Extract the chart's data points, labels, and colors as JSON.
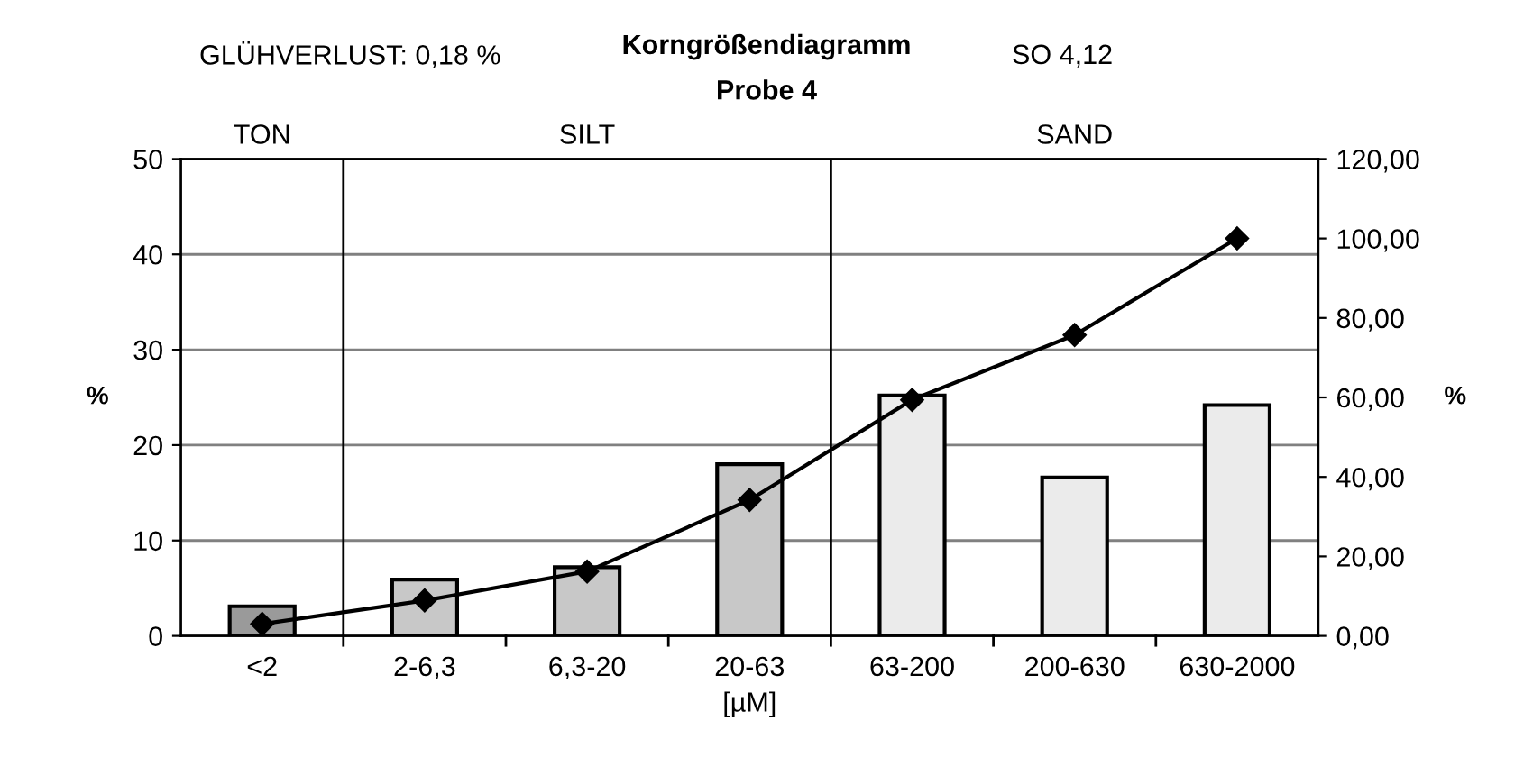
{
  "chart_data": {
    "type": "bar",
    "title": "Korngrößendiagramm",
    "subtitle": "Probe 4",
    "xlabel": "[µM]",
    "ylabel": "%",
    "y2label": "%",
    "annotations": [
      "GLÜHVERLUST: 0,18 %",
      "SO 4,12",
      "TON",
      "SILT",
      "SAND"
    ],
    "categories": [
      "<2",
      "2-6,3",
      "6,3-20",
      "20-63",
      "63-200",
      "200-630",
      "630-2000"
    ],
    "series": [
      {
        "colors": [
          "#9a9a9a",
          "#c8c8c8",
          "#c8c8c8",
          "#c8c8c8",
          "#ebebeb",
          "#ebebeb",
          "#ebebeb"
        ],
        "values": [
          3.1,
          5.9,
          7.2,
          18.0,
          25.2,
          16.6,
          24.2
        ]
      },
      {
        "type": "line",
        "axis": "y2",
        "color": "#000000",
        "marker": "diamond",
        "values": [
          3.0,
          8.9,
          16.2,
          34.2,
          59.4,
          75.7,
          100.0
        ]
      }
    ],
    "ylim": [
      0,
      50
    ],
    "yticks": [
      0,
      10,
      20,
      30,
      40,
      50
    ],
    "y2lim": [
      0,
      120
    ],
    "y2ticks": [
      {
        "value": 0,
        "label": "0,00"
      },
      {
        "value": 20,
        "label": "20,00"
      },
      {
        "value": 40,
        "label": "40,00"
      },
      {
        "value": 60,
        "label": "60,00"
      },
      {
        "value": 80,
        "label": "80,00"
      },
      {
        "value": 100,
        "label": "100,00"
      },
      {
        "value": 120,
        "label": "120,00"
      }
    ],
    "grid": "y",
    "legend": false
  }
}
